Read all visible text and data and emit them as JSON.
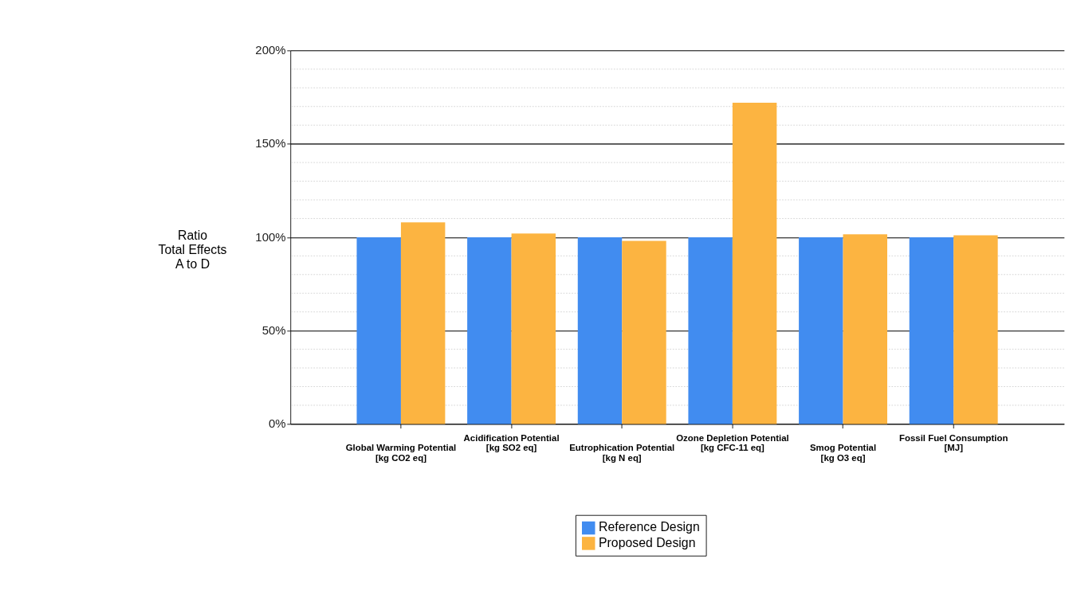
{
  "chart_data": {
    "type": "bar",
    "ylabel": "Ratio\nTotal Effects\nA to D",
    "categories": [
      "Global Warming Potential\n[kg CO2 eq]",
      "Acidification Potential\n[kg SO2 eq]",
      "Eutrophication Potential\n[kg N eq]",
      "Ozone Depletion Potential\n[kg CFC-11 eq]",
      "Smog Potential\n[kg O3 eq]",
      "Fossil Fuel Consumption\n[MJ]"
    ],
    "series": [
      {
        "name": "Reference Design",
        "color": "#418cf0",
        "values": [
          100,
          100,
          100,
          100,
          100,
          100
        ]
      },
      {
        "name": "Proposed Design",
        "color": "#fcb441",
        "values": [
          108,
          102,
          98,
          172,
          101.5,
          101
        ]
      }
    ],
    "ylim": [
      0,
      200
    ],
    "yticks": [
      {
        "value": 0,
        "label": "0%"
      },
      {
        "value": 50,
        "label": "50%"
      },
      {
        "value": 100,
        "label": "100%"
      },
      {
        "value": 150,
        "label": "150%"
      },
      {
        "value": 200,
        "label": "200%"
      }
    ],
    "grid": "y",
    "legend": "bottom"
  }
}
